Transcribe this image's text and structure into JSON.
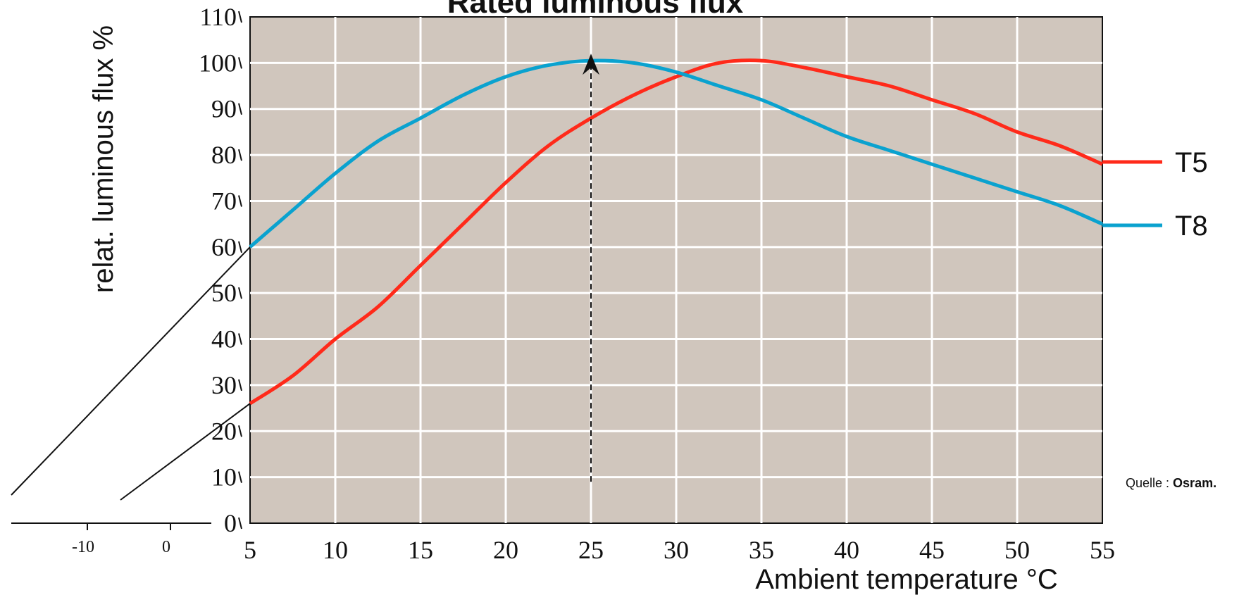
{
  "chart_data": {
    "type": "line",
    "title": "Rated luminous flux",
    "xlabel": "Ambient temperature °C",
    "ylabel": "relat. luminous flux %",
    "xlim": [
      5,
      55
    ],
    "ylim": [
      0,
      110
    ],
    "x_ticks": [
      5,
      10,
      15,
      20,
      25,
      30,
      35,
      40,
      45,
      50,
      55
    ],
    "y_ticks": [
      0,
      10,
      20,
      30,
      40,
      50,
      60,
      70,
      80,
      90,
      100,
      110
    ],
    "extra_x_ticks": [
      "-10",
      "0"
    ],
    "grid": true,
    "legend_position": "right",
    "series": [
      {
        "name": "T5",
        "color": "#ff2a1a",
        "x": [
          5,
          7.5,
          10,
          12.5,
          15,
          17.5,
          20,
          22.5,
          25,
          27.5,
          30,
          32.5,
          35,
          37.5,
          40,
          42.5,
          45,
          47.5,
          50,
          52.5,
          55
        ],
        "y": [
          26,
          32,
          40,
          47,
          56,
          65,
          74,
          82,
          88,
          93,
          97,
          100,
          100.5,
          99,
          97,
          95,
          92,
          89,
          85,
          82,
          78
        ]
      },
      {
        "name": "T8",
        "color": "#0aa2cf",
        "x": [
          5,
          7.5,
          10,
          12.5,
          15,
          17.5,
          20,
          22.5,
          25,
          27.5,
          30,
          32.5,
          35,
          37.5,
          40,
          42.5,
          45,
          47.5,
          50,
          52.5,
          55
        ],
        "y": [
          60,
          68,
          76,
          83,
          88,
          93,
          97,
          99.5,
          100.5,
          100,
          98,
          95,
          92,
          88,
          84,
          81,
          78,
          75,
          72,
          69,
          65
        ]
      }
    ],
    "annotation_arrow": {
      "x": 25,
      "y_from": 9,
      "y_to": 102
    },
    "source_prefix": "Quelle : ",
    "source_name": "Osram."
  },
  "colors": {
    "plot_background": "#d0c6bd",
    "grid": "#ffffff"
  }
}
